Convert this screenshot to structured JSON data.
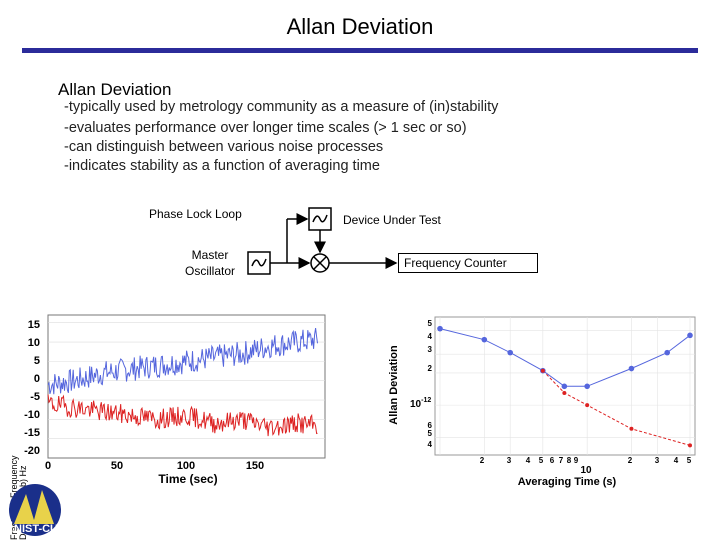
{
  "slide": {
    "title": "Allan Deviation",
    "heading": "Allan Deviation",
    "bullets": [
      "-typically used by metrology community as a measure of (in)stability",
      "-evaluates performance over longer time scales (> 1 sec or so)",
      "-can distinguish between various noise processes",
      "-indicates stability as a function of averaging time"
    ]
  },
  "diagram": {
    "phase_lock_loop": "Phase Lock Loop",
    "master_oscillator_line1": "Master",
    "master_oscillator_line2": "Oscillator",
    "device_under_test": "Device Under Test",
    "frequency_counter": "Frequency Counter"
  },
  "time_chart": {
    "x_label": "Time (sec)",
    "x_ticks": [
      "0",
      "50",
      "100",
      "150"
    ],
    "y_ticks": [
      "15",
      "10",
      "5",
      "0",
      "-5",
      "-10",
      "-15",
      "-20"
    ],
    "y_label_vertical": "Fractional Frequency Deviation (ppb) Hz"
  },
  "allan_chart": {
    "x_label": "Averaging Time (s)",
    "y_label": "Allan Deviation",
    "decade_x": "10",
    "decade_y": "10",
    "decade_y_exp": "-12",
    "x_ticks_left": [
      "2",
      "3",
      "4",
      "5",
      "6",
      "7",
      "8",
      "9"
    ],
    "x_ticks_right": [
      "2",
      "3",
      "4",
      "5"
    ],
    "y_ticks_top": [
      "5",
      "4",
      "3",
      "2"
    ],
    "y_ticks_bottom": [
      "6",
      "5",
      "4"
    ]
  },
  "logo": {
    "text": "NIST-CU"
  },
  "colors": {
    "title_rule": "#2b2b9a",
    "series_blue": "#5566dd",
    "series_red": "#dd2222"
  },
  "chart_data": [
    {
      "type": "line",
      "xlabel": "Time (sec)",
      "ylabel": "",
      "xlim": [
        0,
        200
      ],
      "ylim": [
        -20,
        17
      ],
      "series": [
        {
          "x": [
            0,
            20,
            40,
            60,
            80,
            100,
            120,
            140,
            160,
            180,
            200
          ],
          "values": [
            -1,
            0,
            2,
            3,
            4,
            5,
            6,
            7,
            9,
            10,
            11
          ]
        },
        {
          "x": [
            0,
            20,
            40,
            60,
            80,
            100,
            120,
            140,
            160,
            180,
            200
          ],
          "values": [
            -6,
            -7,
            -8,
            -9,
            -10,
            -9,
            -11,
            -10,
            -12,
            -11,
            -12
          ]
        }
      ]
    },
    {
      "type": "line",
      "xlabel": "Averaging Time (s)",
      "ylabel": "Allan Deviation",
      "series": [
        {
          "x": [
            1,
            2,
            3,
            5,
            7,
            10,
            20,
            35,
            50
          ],
          "values": [
            5.2,
            4.1,
            3.1,
            2.1,
            1.5,
            1.5,
            2.2,
            3.1,
            4.5
          ]
        },
        {
          "x": [
            5,
            7,
            10,
            20,
            50
          ],
          "values": [
            2.1,
            1.3,
            1.0,
            0.6,
            0.42
          ]
        }
      ]
    }
  ]
}
